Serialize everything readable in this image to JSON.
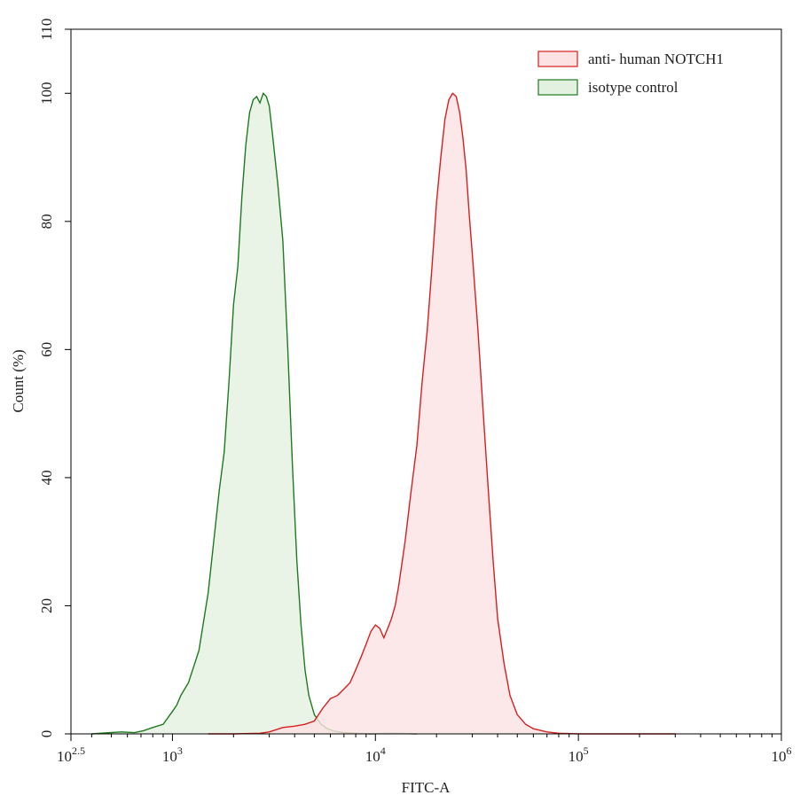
{
  "chart_data": {
    "type": "area",
    "xscale": "log",
    "xlabel": "FITC-A",
    "ylabel": "Count  (%)",
    "xlim": [
      316.23,
      1000000
    ],
    "ylim": [
      0,
      110
    ],
    "x_ticks": [
      {
        "value": 316.23,
        "base": "10",
        "exp": "2.5"
      },
      {
        "value": 1000,
        "base": "10",
        "exp": "3"
      },
      {
        "value": 10000,
        "base": "10",
        "exp": "4"
      },
      {
        "value": 100000,
        "base": "10",
        "exp": "5"
      },
      {
        "value": 1000000,
        "base": "10",
        "exp": "6"
      }
    ],
    "y_ticks": [
      {
        "value": 0,
        "label": "0"
      },
      {
        "value": 20,
        "label": "20"
      },
      {
        "value": 40,
        "label": "40"
      },
      {
        "value": 60,
        "label": "60"
      },
      {
        "value": 80,
        "label": "80"
      },
      {
        "value": 100,
        "label": "100"
      },
      {
        "value": 110,
        "label": "110"
      }
    ],
    "grid": false,
    "legend_position": "top-right",
    "series": [
      {
        "name": "isotype control",
        "stroke": "#1f7a1f",
        "fill": "#e3f1e0",
        "x": [
          400,
          560,
          650,
          720,
          800,
          900,
          1000,
          1050,
          1100,
          1200,
          1350,
          1500,
          1700,
          1800,
          1900,
          2000,
          2100,
          2200,
          2300,
          2400,
          2500,
          2600,
          2700,
          2800,
          2900,
          3000,
          3100,
          3200,
          3300,
          3500,
          3700,
          3900,
          4100,
          4300,
          4500,
          4700,
          5000,
          5400,
          5800,
          6300,
          7000,
          8000,
          9500,
          12000,
          16000
        ],
        "y": [
          0,
          0.3,
          0.2,
          0.5,
          1,
          1.5,
          3.5,
          4.5,
          6,
          8,
          13,
          22,
          38,
          44,
          55,
          67,
          73,
          84,
          92,
          97,
          99,
          99.5,
          98.5,
          100,
          99.5,
          98,
          94,
          90,
          86,
          77,
          60,
          42,
          27,
          17,
          10,
          6,
          3,
          1.5,
          0.8,
          0.4,
          0.2,
          0.1,
          0,
          0.1,
          0
        ]
      },
      {
        "name": "anti- human NOTCH1",
        "stroke": "#d81e1e",
        "fill": "#fde2e4",
        "x": [
          1500,
          2000,
          2700,
          3000,
          3500,
          4000,
          4500,
          5000,
          5500,
          6000,
          6500,
          7000,
          7500,
          8000,
          8500,
          9000,
          9500,
          10000,
          10500,
          11000,
          11500,
          12000,
          12500,
          13000,
          14000,
          15000,
          16000,
          17000,
          18000,
          19000,
          20000,
          21000,
          22000,
          23000,
          24000,
          25000,
          26000,
          27000,
          28000,
          29000,
          30000,
          32000,
          34000,
          36000,
          38000,
          40000,
          43000,
          46000,
          50000,
          55000,
          60000,
          70000,
          80000,
          100000,
          150000,
          300000
        ],
        "y": [
          0,
          0,
          0.1,
          0.3,
          1,
          1.2,
          1.5,
          2,
          4,
          5.5,
          6,
          7,
          8,
          10,
          12,
          14,
          16,
          17,
          16.5,
          15,
          16.5,
          18,
          20,
          23,
          30,
          38,
          45,
          55,
          63,
          73,
          83,
          90,
          96,
          99,
          100,
          99.5,
          97,
          93,
          88,
          81,
          75,
          63,
          50,
          38,
          27,
          18,
          11,
          6,
          3,
          1.5,
          0.8,
          0.3,
          0.1,
          0,
          0,
          0
        ]
      }
    ]
  }
}
